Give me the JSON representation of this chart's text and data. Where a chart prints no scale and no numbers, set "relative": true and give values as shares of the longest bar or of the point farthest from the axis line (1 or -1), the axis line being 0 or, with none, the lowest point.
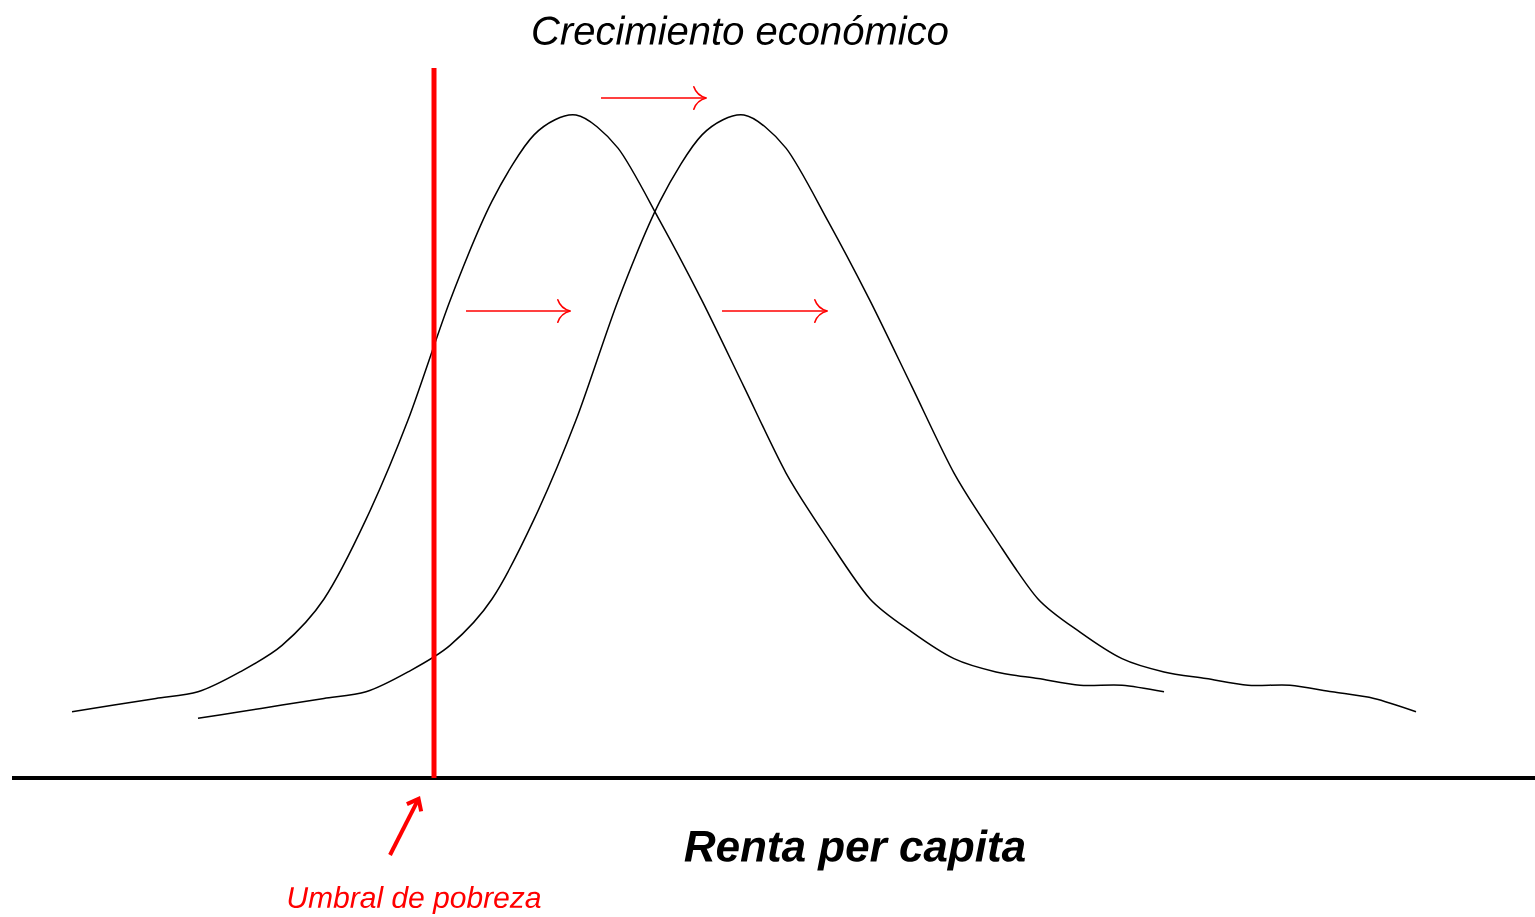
{
  "chart_data": {
    "type": "line",
    "relative": true,
    "title": "Crecimiento económico",
    "xlabel": "Renta per capita",
    "categories": [
      null,
      null,
      null,
      null,
      null,
      null,
      null,
      null,
      null,
      null,
      null,
      null,
      null,
      null,
      null,
      null,
      null,
      null,
      null,
      null,
      null,
      null,
      null,
      null,
      null,
      null,
      null,
      null,
      null,
      null,
      null,
      null,
      null
    ],
    "series": [
      {
        "color": "#000000",
        "values": [
          0.1,
          0.11,
          0.12,
          0.13,
          0.16,
          0.2,
          0.27,
          0.39,
          0.54,
          0.72,
          0.87,
          0.97,
          1.0,
          0.95,
          0.84,
          0.72,
          0.59,
          0.46,
          0.36,
          0.27,
          0.22,
          0.18,
          0.16,
          0.15,
          0.14,
          0.14,
          0.13,
          null,
          null,
          null,
          null,
          null,
          null
        ]
      },
      {
        "color": "#000000",
        "values": [
          null,
          null,
          null,
          0.09,
          0.1,
          0.11,
          0.12,
          0.13,
          0.16,
          0.2,
          0.27,
          0.39,
          0.54,
          0.72,
          0.87,
          0.97,
          1.0,
          0.95,
          0.84,
          0.72,
          0.59,
          0.46,
          0.36,
          0.27,
          0.22,
          0.18,
          0.16,
          0.15,
          0.14,
          0.14,
          0.13,
          0.12,
          0.1
        ]
      }
    ],
    "annotations": [
      "Umbral de pobreza"
    ],
    "marker": "none"
  }
}
